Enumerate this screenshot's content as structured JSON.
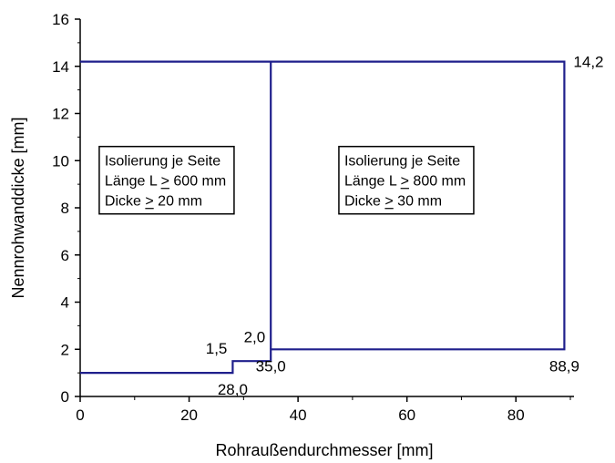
{
  "chart_data": {
    "type": "line",
    "title": "",
    "xlabel": "Rohraußendurchmesser [mm]",
    "ylabel": "Nennrohwanddicke [mm]",
    "xlim": [
      0,
      90
    ],
    "ylim": [
      0,
      16
    ],
    "xticks": [
      0,
      20,
      40,
      60,
      80
    ],
    "yticks": [
      0,
      2,
      4,
      6,
      8,
      10,
      12,
      14,
      16
    ],
    "line_color": "#1f1f8c",
    "series": [
      {
        "points": [
          [
            0,
            1.0
          ],
          [
            28.0,
            1.0
          ],
          [
            28.0,
            1.5
          ],
          [
            35.0,
            1.5
          ],
          [
            35.0,
            2.0
          ],
          [
            88.9,
            2.0
          ],
          [
            88.9,
            14.2
          ],
          [
            0,
            14.2
          ]
        ]
      },
      {
        "points": [
          [
            35.0,
            2.0
          ],
          [
            35.0,
            14.2
          ]
        ]
      }
    ],
    "annotations": [
      {
        "text": "1,5",
        "x": 28.0,
        "y": 1.5,
        "anchor": "left-above"
      },
      {
        "text": "2,0",
        "x": 35.0,
        "y": 2.0,
        "anchor": "left-above"
      },
      {
        "text": "28,0",
        "x": 28.0,
        "y": 1.0,
        "anchor": "below"
      },
      {
        "text": "35,0",
        "x": 35.0,
        "y": 2.0,
        "anchor": "below"
      },
      {
        "text": "88,9",
        "x": 88.9,
        "y": 2.0,
        "anchor": "below"
      },
      {
        "text": "14,2",
        "x": 88.9,
        "y": 14.2,
        "anchor": "right"
      }
    ],
    "text_boxes": [
      {
        "lines": [
          "Isolierung je Seite",
          "Länge L > 600 mm",
          "Dicke > 20 mm"
        ],
        "x": 3.5,
        "y": 10.6
      },
      {
        "lines": [
          "Isolierung je Seite",
          "Länge L > 800 mm",
          "Dicke > 30 mm"
        ],
        "x": 47.5,
        "y": 10.6
      }
    ]
  }
}
